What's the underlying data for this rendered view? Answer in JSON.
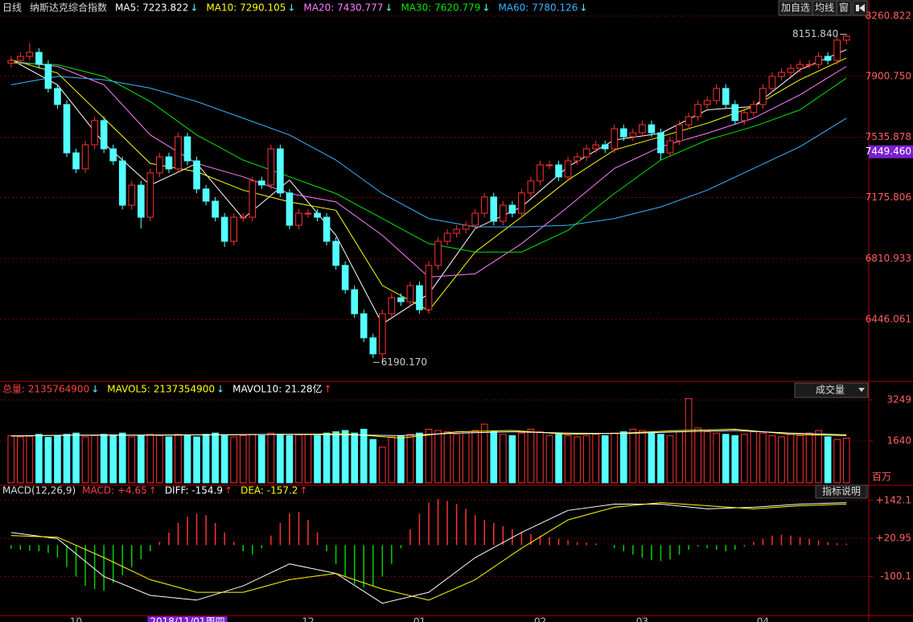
{
  "header": {
    "period": "日线",
    "index_name": "纳斯达克综合指数",
    "buttons": [
      "加自选",
      "均线",
      "窗"
    ]
  },
  "chart_data": [
    {
      "type": "candlestick",
      "legend": [
        {
          "label": "MA5: 7223.822",
          "arrow": "↓",
          "color": "#ffffff",
          "arrow_color": "#54ffff"
        },
        {
          "label": "MA10: 7290.105",
          "arrow": "↓",
          "color": "#ffff00",
          "arrow_color": "#54ffff"
        },
        {
          "label": "MA20: 7430.777",
          "arrow": "↓",
          "color": "#ff80ff",
          "arrow_color": "#54ffff"
        },
        {
          "label": "MA30: 7620.779",
          "arrow": "↓",
          "color": "#00e600",
          "arrow_color": "#54ffff"
        },
        {
          "label": "MA60: 7780.126",
          "arrow": "↓",
          "color": "#3cb4ff",
          "arrow_color": "#54ffff"
        }
      ],
      "up_color": "#ff3232",
      "down_color": "#54ffff",
      "open": [
        7980,
        7996,
        8020,
        8044,
        7972,
        7828,
        7732,
        7443,
        7347,
        7491,
        7636,
        7467,
        7395,
        7130,
        7250,
        7058,
        7323,
        7419,
        7347,
        7539,
        7395,
        7227,
        7154,
        7058,
        6914,
        7058,
        7058,
        7275,
        7251,
        7467,
        7203,
        7010,
        7082,
        7082,
        7058,
        6914,
        6770,
        6625,
        6481,
        6337,
        6241,
        6481,
        6577,
        6553,
        6649,
        6505,
        6770,
        6914,
        6962,
        6986,
        7010,
        7082,
        7179,
        7034,
        7130,
        7082,
        7203,
        7275,
        7371,
        7371,
        7299,
        7395,
        7419,
        7467,
        7491,
        7467,
        7587,
        7539,
        7563,
        7611,
        7563,
        7443,
        7515,
        7611,
        7659,
        7732,
        7756,
        7828,
        7732,
        7636,
        7684,
        7732,
        7828,
        7900,
        7924,
        7948,
        7972,
        7972,
        8020,
        7996,
        8117
      ],
      "high": [
        8021,
        8045,
        8100,
        8069,
        7997,
        7853,
        7757,
        7468,
        7516,
        7661,
        7661,
        7492,
        7420,
        7275,
        7275,
        7348,
        7444,
        7444,
        7564,
        7564,
        7420,
        7252,
        7179,
        7083,
        7083,
        7083,
        7300,
        7300,
        7492,
        7492,
        7228,
        7107,
        7107,
        7107,
        7083,
        6939,
        6795,
        6650,
        6506,
        6362,
        6506,
        6602,
        6602,
        6674,
        6674,
        6795,
        6939,
        6987,
        7011,
        7035,
        7107,
        7204,
        7204,
        7155,
        7155,
        7228,
        7300,
        7396,
        7396,
        7396,
        7420,
        7444,
        7492,
        7516,
        7516,
        7612,
        7612,
        7588,
        7636,
        7636,
        7588,
        7540,
        7636,
        7684,
        7757,
        7781,
        7853,
        7853,
        7757,
        7709,
        7757,
        7853,
        7925,
        7949,
        7973,
        7997,
        7997,
        8045,
        8045,
        8142,
        8151.84
      ],
      "low": [
        7955,
        7971,
        7995,
        7947,
        7803,
        7707,
        7418,
        7322,
        7322,
        7466,
        7442,
        7370,
        7105,
        7105,
        6990,
        7033,
        7298,
        7322,
        7322,
        7370,
        7202,
        7129,
        7033,
        6880,
        6889,
        7033,
        7033,
        7226,
        7226,
        7178,
        6985,
        6985,
        7057,
        7033,
        6889,
        6745,
        6600,
        6456,
        6312,
        6216,
        6190.17,
        6456,
        6528,
        6528,
        6480,
        6480,
        6745,
        6889,
        6937,
        6961,
        6985,
        7057,
        7009,
        7009,
        7057,
        7057,
        7178,
        7250,
        7346,
        7274,
        7274,
        7370,
        7394,
        7442,
        7442,
        7442,
        7514,
        7514,
        7538,
        7538,
        7400,
        7418,
        7490,
        7586,
        7634,
        7707,
        7731,
        7707,
        7611,
        7611,
        7659,
        7707,
        7803,
        7875,
        7899,
        7923,
        7947,
        7947,
        7971,
        7971,
        8092
      ],
      "close": [
        7996,
        8020,
        8044,
        7972,
        7828,
        7732,
        7443,
        7347,
        7491,
        7636,
        7467,
        7395,
        7130,
        7250,
        7058,
        7323,
        7419,
        7347,
        7539,
        7395,
        7227,
        7154,
        7058,
        6914,
        7058,
        7058,
        7275,
        7251,
        7467,
        7203,
        7010,
        7082,
        7082,
        7058,
        6914,
        6770,
        6625,
        6481,
        6337,
        6241,
        6481,
        6577,
        6553,
        6649,
        6505,
        6770,
        6914,
        6962,
        6986,
        7010,
        7082,
        7179,
        7034,
        7130,
        7082,
        7203,
        7275,
        7371,
        7371,
        7299,
        7395,
        7419,
        7467,
        7491,
        7467,
        7587,
        7539,
        7563,
        7611,
        7563,
        7443,
        7515,
        7611,
        7659,
        7732,
        7756,
        7828,
        7732,
        7636,
        7684,
        7732,
        7828,
        7900,
        7924,
        7948,
        7972,
        7972,
        8020,
        7996,
        8117,
        8141
      ],
      "series": [
        {
          "color": "#ffffff",
          "x": [
            0,
            5,
            10,
            15,
            20,
            25,
            30,
            35,
            40,
            45,
            50,
            55,
            60,
            65,
            70,
            75,
            80,
            85,
            90
          ],
          "values": [
            8000,
            7850,
            7500,
            7250,
            7380,
            7050,
            7280,
            6950,
            6420,
            6600,
            6990,
            7120,
            7360,
            7520,
            7560,
            7700,
            7720,
            7940,
            8060
          ]
        },
        {
          "color": "#ffff00",
          "x": [
            0,
            5,
            10,
            15,
            20,
            25,
            30,
            35,
            40,
            45,
            50,
            55,
            60,
            65,
            70,
            75,
            80,
            85,
            90
          ],
          "values": [
            8000,
            7920,
            7650,
            7380,
            7330,
            7220,
            7150,
            7100,
            6650,
            6500,
            6850,
            7060,
            7280,
            7460,
            7540,
            7620,
            7720,
            7880,
            8010
          ]
        },
        {
          "color": "#ff80ff",
          "x": [
            0,
            5,
            10,
            15,
            20,
            25,
            30,
            35,
            40,
            45,
            50,
            55,
            60,
            65,
            70,
            75,
            80,
            85,
            90
          ],
          "values": [
            7990,
            7960,
            7850,
            7550,
            7380,
            7300,
            7200,
            7150,
            6950,
            6700,
            6720,
            6900,
            7120,
            7350,
            7480,
            7560,
            7650,
            7790,
            7960
          ]
        },
        {
          "color": "#00e600",
          "x": [
            0,
            5,
            10,
            15,
            20,
            25,
            30,
            35,
            40,
            45,
            50,
            55,
            60,
            65,
            70,
            75,
            80,
            85,
            90
          ],
          "values": [
            7980,
            7970,
            7900,
            7750,
            7550,
            7400,
            7300,
            7200,
            7050,
            6900,
            6850,
            6850,
            6980,
            7200,
            7400,
            7520,
            7600,
            7700,
            7890
          ]
        },
        {
          "color": "#3cb4ff",
          "x": [
            0,
            5,
            10,
            15,
            20,
            25,
            30,
            35,
            40,
            45,
            50,
            55,
            60,
            65,
            70,
            75,
            80,
            85,
            90
          ],
          "values": [
            7850,
            7900,
            7880,
            7830,
            7750,
            7650,
            7550,
            7400,
            7200,
            7050,
            7000,
            7000,
            7010,
            7050,
            7120,
            7220,
            7350,
            7480,
            7650
          ]
        }
      ],
      "ylim": [
        6086,
        8357
      ],
      "yticks": [
        8260.822,
        {
          "value": 7900.75,
          "label": "7900.750"
        },
        7535.878,
        7175.806,
        6810.933,
        6446.061
      ],
      "grid": true,
      "annotations": [
        {
          "label": "8151.840",
          "index": 90,
          "value": 8151.84
        },
        {
          "label": "6190.170",
          "index": 39,
          "value": 6190.17
        }
      ],
      "last_price": {
        "value": 7449.46,
        "label": "7449.460"
      }
    },
    {
      "type": "bar",
      "legend": [
        {
          "label": "总量: 2135764900",
          "arrow": "↓",
          "color": "#ff4040",
          "arrow_color": "#54ffff"
        },
        {
          "label": "MAVOL5: 2137354900",
          "arrow": "↓",
          "color": "#ffff00",
          "arrow_color": "#54ffff"
        },
        {
          "label": "MAVOL10: 21.28亿",
          "arrow": "↑",
          "color": "#ffffff",
          "arrow_color": "#ff3232"
        }
      ],
      "menu": "成交量",
      "unit": "百万",
      "values": [
        1850,
        1800,
        1820,
        1900,
        1780,
        1850,
        1900,
        1950,
        1800,
        1850,
        1900,
        1880,
        1950,
        1800,
        1850,
        1900,
        1850,
        1800,
        1900,
        1850,
        1800,
        1900,
        1950,
        1850,
        1800,
        1850,
        1900,
        1850,
        1950,
        1900,
        1850,
        1880,
        1900,
        1850,
        1950,
        2000,
        2050,
        1950,
        2100,
        1700,
        1400,
        1800,
        1850,
        1900,
        1950,
        2100,
        2050,
        2000,
        1900,
        1950,
        2050,
        2300,
        2000,
        1900,
        1850,
        1950,
        2100,
        2000,
        1850,
        1900,
        1850,
        1800,
        1850,
        1900,
        1850,
        1950,
        2000,
        2100,
        2050,
        1950,
        1900,
        1850,
        2000,
        3300,
        2150,
        2000,
        1950,
        1900,
        1850,
        1900,
        2000,
        1950,
        1850,
        1800,
        1900,
        1850,
        1950,
        2050,
        1800,
        1700,
        1750
      ],
      "series": [
        {
          "color": "#ffff00",
          "x": [
            0,
            6,
            12,
            18,
            24,
            30,
            36,
            42,
            48,
            54,
            60,
            66,
            72,
            78,
            84,
            90
          ],
          "values": [
            1830,
            1870,
            1860,
            1880,
            1880,
            1900,
            1920,
            1750,
            2000,
            2050,
            1900,
            1950,
            2050,
            2100,
            1900,
            1850
          ]
        },
        {
          "color": "#ffffff",
          "x": [
            0,
            6,
            12,
            18,
            24,
            30,
            36,
            42,
            48,
            54,
            60,
            66,
            72,
            78,
            84,
            90
          ],
          "values": [
            1840,
            1860,
            1870,
            1870,
            1890,
            1900,
            1880,
            1850,
            1950,
            2000,
            1950,
            1930,
            2000,
            2050,
            1950,
            1880
          ]
        }
      ],
      "ylim": [
        0,
        3407
      ],
      "yticks": [
        3249,
        1640
      ]
    },
    {
      "type": "macd",
      "title": "MACD(12,26,9)",
      "legend": [
        {
          "label": "MACD: +4.65",
          "arrow": "↑",
          "color": "#ff4040",
          "arrow_color": "#ff3232"
        },
        {
          "label": "DIFF: -154.9",
          "arrow": "↑",
          "color": "#ffffff",
          "arrow_color": "#ff3232"
        },
        {
          "label": "DEA: -157.2",
          "arrow": "↑",
          "color": "#ffff00",
          "arrow_color": "#ff3232"
        }
      ],
      "help": "指标说明",
      "pos_color": "#ff3232",
      "neg_color": "#00d000",
      "values": [
        -12,
        -15,
        -18,
        -20,
        -25,
        -40,
        -70,
        -100,
        -130,
        -140,
        -145,
        -120,
        -95,
        -70,
        -45,
        -20,
        10,
        40,
        70,
        90,
        100,
        95,
        70,
        40,
        10,
        -20,
        -30,
        -10,
        30,
        70,
        100,
        105,
        80,
        40,
        -20,
        -60,
        -100,
        -125,
        -135,
        -130,
        -100,
        -60,
        -10,
        50,
        100,
        135,
        146,
        140,
        130,
        115,
        95,
        80,
        70,
        60,
        50,
        40,
        35,
        30,
        25,
        20,
        15,
        10,
        8,
        5,
        0,
        -10,
        -20,
        -30,
        -40,
        -48,
        -50,
        -45,
        -30,
        -15,
        -5,
        -10,
        -15,
        -20,
        -15,
        -5,
        10,
        20,
        30,
        33,
        30,
        25,
        20,
        15,
        10,
        6,
        4.65
      ],
      "series": [
        {
          "color": "#ffffff",
          "x": [
            0,
            5,
            10,
            15,
            20,
            25,
            30,
            35,
            40,
            45,
            50,
            55,
            60,
            65,
            70,
            75,
            80,
            85,
            90
          ],
          "values": [
            40,
            20,
            -100,
            -160,
            -175,
            -130,
            -60,
            -90,
            -185,
            -150,
            -40,
            40,
            110,
            130,
            130,
            115,
            120,
            130,
            135
          ]
        },
        {
          "color": "#ffff00",
          "x": [
            0,
            5,
            10,
            15,
            20,
            25,
            30,
            35,
            40,
            45,
            50,
            55,
            60,
            65,
            70,
            75,
            80,
            85,
            90
          ],
          "values": [
            30,
            25,
            -40,
            -110,
            -150,
            -150,
            -110,
            -90,
            -140,
            -175,
            -110,
            -10,
            80,
            120,
            135,
            125,
            115,
            125,
            130
          ]
        }
      ],
      "ylim": [
        -224,
        185
      ],
      "yticks": [
        {
          "value": 142.1,
          "label": "+142.1"
        },
        {
          "value": 20.95,
          "label": "+20.95"
        },
        -100.1
      ]
    }
  ],
  "date_ticks": [
    {
      "index": 7,
      "label": "10"
    },
    {
      "index": 32,
      "label": "12"
    },
    {
      "index": 44,
      "label": "01"
    },
    {
      "index": 57,
      "label": "02"
    },
    {
      "index": 68,
      "label": "03"
    },
    {
      "index": 81,
      "label": "04"
    }
  ],
  "cursor_date": {
    "index": 19,
    "label": "2018/11/01周四"
  }
}
